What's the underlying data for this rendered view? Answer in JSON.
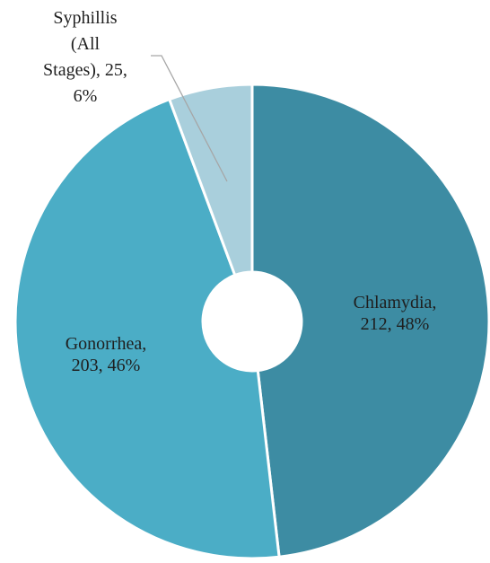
{
  "chart_data": {
    "type": "pie",
    "title": "",
    "donut": true,
    "legend": "none",
    "slices": [
      {
        "label": "Chlamydia",
        "value": 212,
        "percent": "48%",
        "data_label": [
          "Chlamydia,",
          "212, 48%"
        ],
        "color": "#3d8ca3"
      },
      {
        "label": "Gonorrhea",
        "value": 203,
        "percent": "46%",
        "data_label": [
          "Gonorrhea,",
          "203, 46%"
        ],
        "color": "#4badc6"
      },
      {
        "label": "Syphillis (All Stages)",
        "value": 25,
        "percent": "6%",
        "data_label": [
          "Syphillis",
          "(All",
          "Stages), 25,",
          "6%"
        ],
        "color": "#a9cfdc"
      }
    ]
  }
}
